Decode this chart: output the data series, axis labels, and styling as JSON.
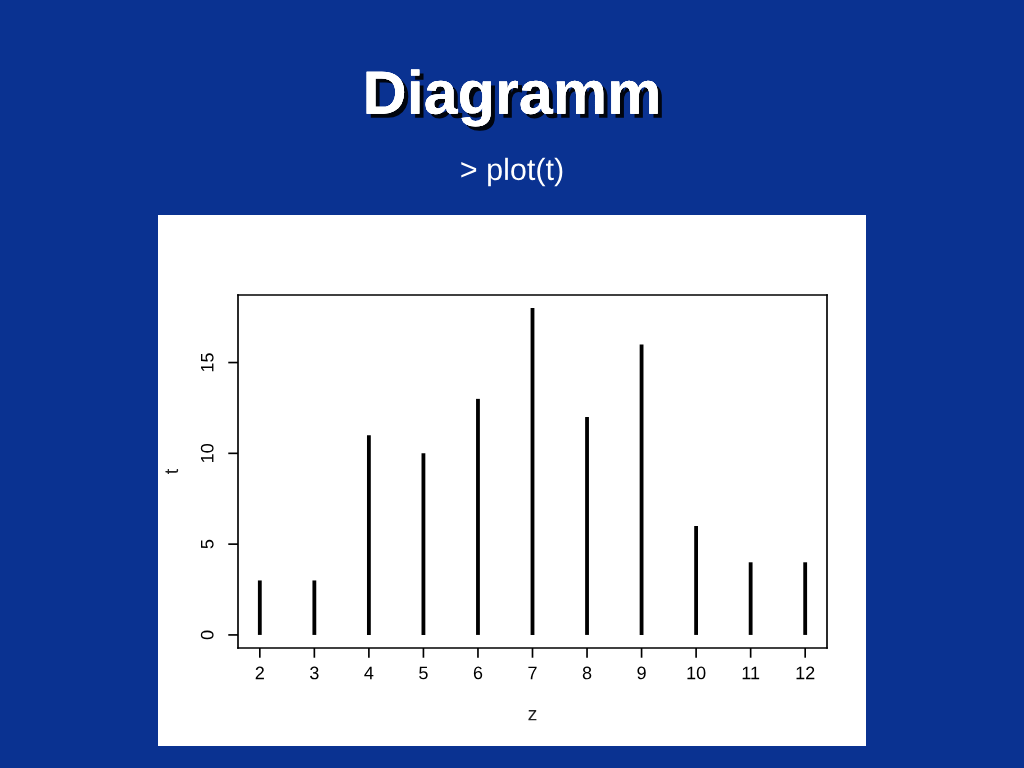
{
  "chart_data": {
    "type": "bar",
    "title": "Diagramm",
    "subtitle": "> plot(t)",
    "xlabel": "z",
    "ylabel": "t",
    "categories": [
      "2",
      "3",
      "4",
      "5",
      "6",
      "7",
      "8",
      "9",
      "10",
      "11",
      "12"
    ],
    "values": [
      3,
      3,
      11,
      10,
      13,
      18,
      12,
      16,
      6,
      4,
      4
    ],
    "color": "#000000",
    "ylim": [
      -0.72,
      18.72
    ],
    "yticks": [
      0,
      5,
      10,
      15
    ]
  }
}
